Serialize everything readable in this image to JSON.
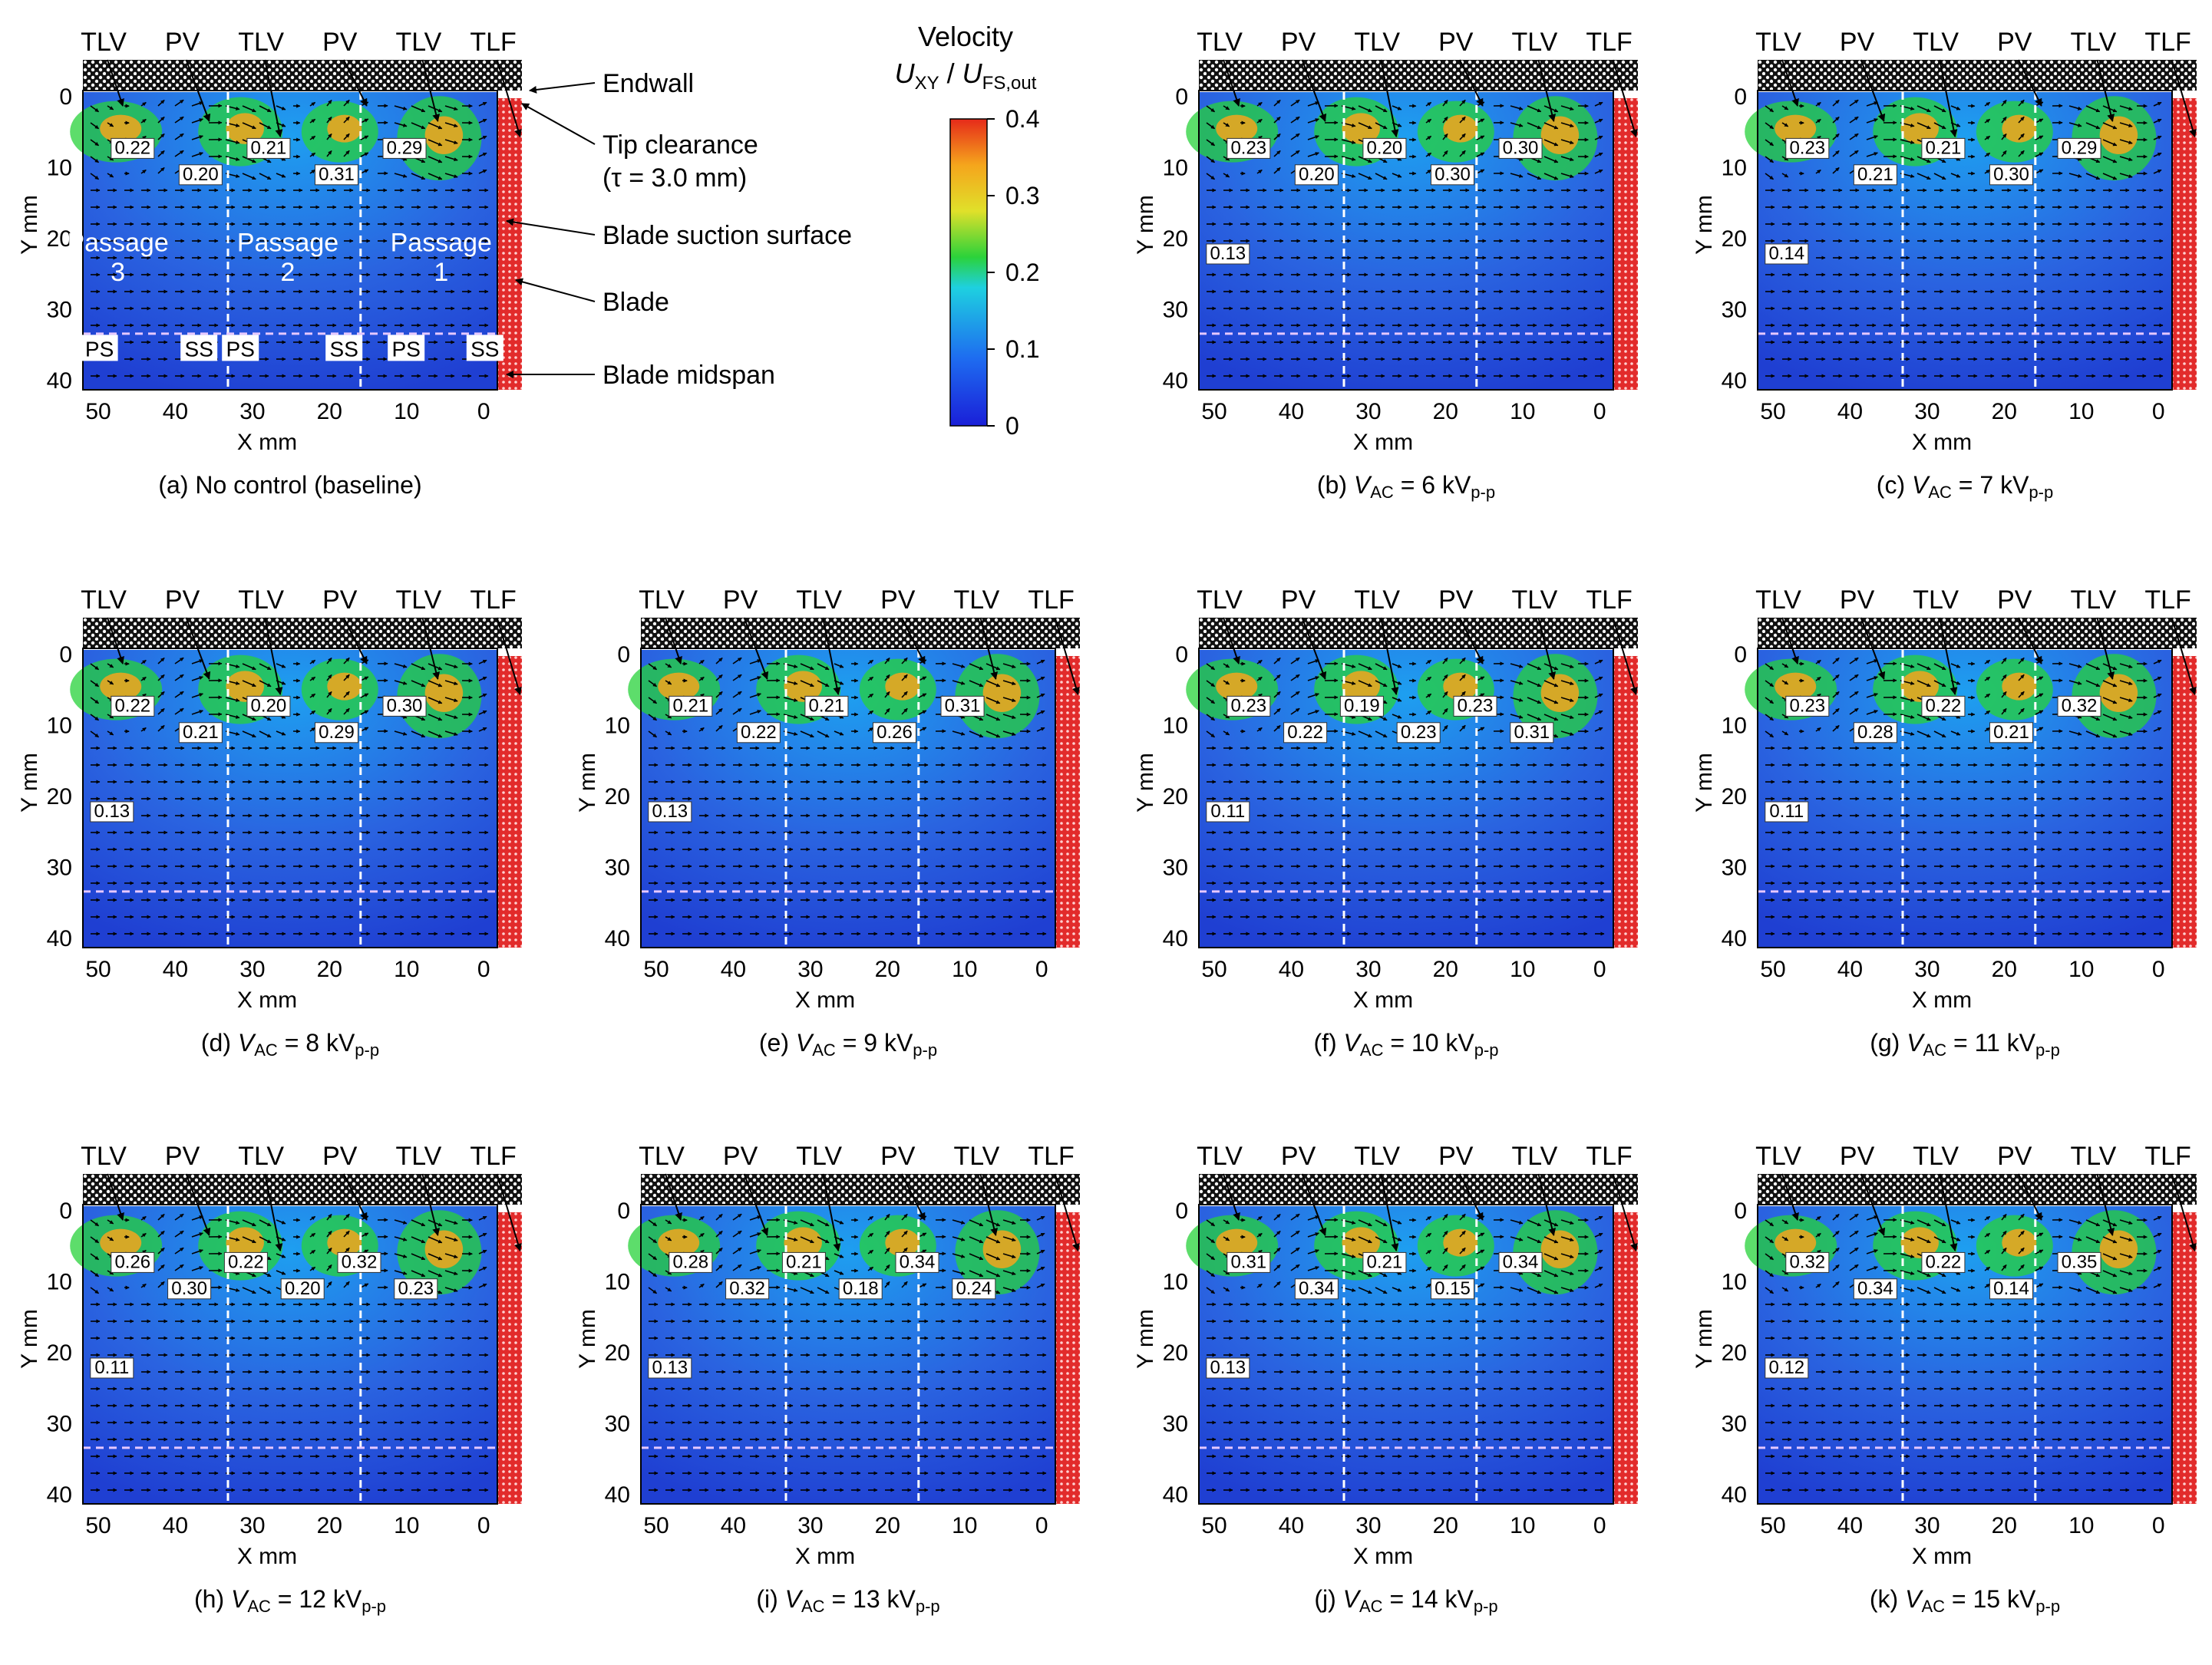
{
  "colors": {
    "field_low": "#1f3fd2",
    "field_mid": "#1e9ff0",
    "field_hi": "#27d23a",
    "field_peak": "#f5a51c",
    "blade": "#e22b2b",
    "endwall": "#1a1a1a",
    "arrow": "#000000",
    "guide_line": "#ffffff"
  },
  "axes": {
    "x_label": "X mm",
    "y_label": "Y mm",
    "x_ticks": [
      "50",
      "40",
      "30",
      "20",
      "10",
      "0"
    ],
    "y_ticks": [
      "0",
      "10",
      "20",
      "30",
      "40"
    ]
  },
  "colorbar": {
    "title": "Velocity",
    "quantity_main": "U",
    "quantity_sub": "XY",
    "divider": " / ",
    "ref_main": "U",
    "ref_sub": "FS,out",
    "ticks": [
      "0.4",
      "0.3",
      "0.2",
      "0.1",
      "0"
    ]
  },
  "annotations": {
    "endwall": "Endwall",
    "tip_clearance_1": "Tip clearance",
    "tip_clearance_2": "(τ = 3.0 mm)",
    "suction_surface": "Blade suction surface",
    "blade": "Blade",
    "midspan": "Blade midspan",
    "passage_word": "Passage",
    "passages": [
      "3",
      "2",
      "1"
    ],
    "sides": [
      "PS",
      "SS",
      "PS",
      "SS",
      "PS",
      "SS"
    ]
  },
  "panels": [
    {
      "caption": "(a) No control (baseline)",
      "top": [
        "TLV",
        "PV",
        "TLV",
        "PV",
        "TLV",
        "TLF"
      ],
      "values": [
        "0.22",
        "0.20",
        "0.21",
        "0.31",
        "0.29"
      ]
    },
    {
      "caption_pre": "(b) ",
      "caption_mid": " = 6 kV",
      "top": [
        "TLV",
        "PV",
        "TLV",
        "PV",
        "TLV",
        "TLF"
      ],
      "values": [
        "0.23",
        "0.20",
        "0.20",
        "0.30",
        "0.30",
        "0.13"
      ]
    },
    {
      "caption_pre": "(c) ",
      "caption_mid": " = 7 kV",
      "top": [
        "TLV",
        "PV",
        "TLV",
        "PV",
        "TLV",
        "TLF"
      ],
      "values": [
        "0.23",
        "0.21",
        "0.21",
        "0.30",
        "0.29",
        "0.14"
      ]
    },
    {
      "caption_pre": "(d) ",
      "caption_mid": " = 8 kV",
      "top": [
        "TLV",
        "PV",
        "TLV",
        "PV",
        "TLV",
        "TLF"
      ],
      "values": [
        "0.22",
        "0.21",
        "0.20",
        "0.29",
        "0.30",
        "0.13"
      ]
    },
    {
      "caption_pre": "(e) ",
      "caption_mid": " = 9 kV",
      "top": [
        "TLV",
        "PV",
        "TLV",
        "PV",
        "TLV",
        "TLF"
      ],
      "values": [
        "0.21",
        "0.22",
        "0.21",
        "0.26",
        "0.31",
        "0.13"
      ]
    },
    {
      "caption_pre": "(f) ",
      "caption_mid": " = 10 kV",
      "top": [
        "TLV",
        "PV",
        "TLV",
        "PV",
        "TLV",
        "TLF"
      ],
      "values": [
        "0.23",
        "0.22",
        "0.19",
        "0.23",
        "0.23",
        "0.31",
        "0.11"
      ]
    },
    {
      "caption_pre": "(g) ",
      "caption_mid": " = 11 kV",
      "top": [
        "TLV",
        "PV",
        "TLV",
        "PV",
        "TLV",
        "TLF"
      ],
      "values": [
        "0.23",
        "0.28",
        "0.22",
        "0.21",
        "0.32",
        "0.11"
      ]
    },
    {
      "caption_pre": "(h) ",
      "caption_mid": " = 12 kV",
      "top": [
        "TLV",
        "PV",
        "TLV",
        "PV",
        "TLV",
        "TLF"
      ],
      "values": [
        "0.26",
        "0.30",
        "0.22",
        "0.20",
        "0.32",
        "0.23",
        "0.11"
      ]
    },
    {
      "caption_pre": "(i) ",
      "caption_mid": " = 13 kV",
      "top": [
        "TLV",
        "PV",
        "TLV",
        "PV",
        "TLV",
        "TLF"
      ],
      "values": [
        "0.28",
        "0.32",
        "0.21",
        "0.18",
        "0.34",
        "0.24",
        "0.13"
      ]
    },
    {
      "caption_pre": "(j) ",
      "caption_mid": " = 14 kV",
      "top": [
        "TLV",
        "PV",
        "TLV",
        "PV",
        "TLV",
        "TLF"
      ],
      "values": [
        "0.31",
        "0.34",
        "0.21",
        "0.15",
        "0.34",
        "0.13"
      ]
    },
    {
      "caption_pre": "(k) ",
      "caption_mid": " = 15 kV",
      "top": [
        "TLV",
        "PV",
        "TLV",
        "PV",
        "TLV",
        "TLF"
      ],
      "values": [
        "0.32",
        "0.34",
        "0.22",
        "0.14",
        "0.35",
        "0.12"
      ]
    }
  ],
  "caption_symbol": "V",
  "caption_symbol_sub": "AC",
  "caption_unit_sub": "p-p"
}
